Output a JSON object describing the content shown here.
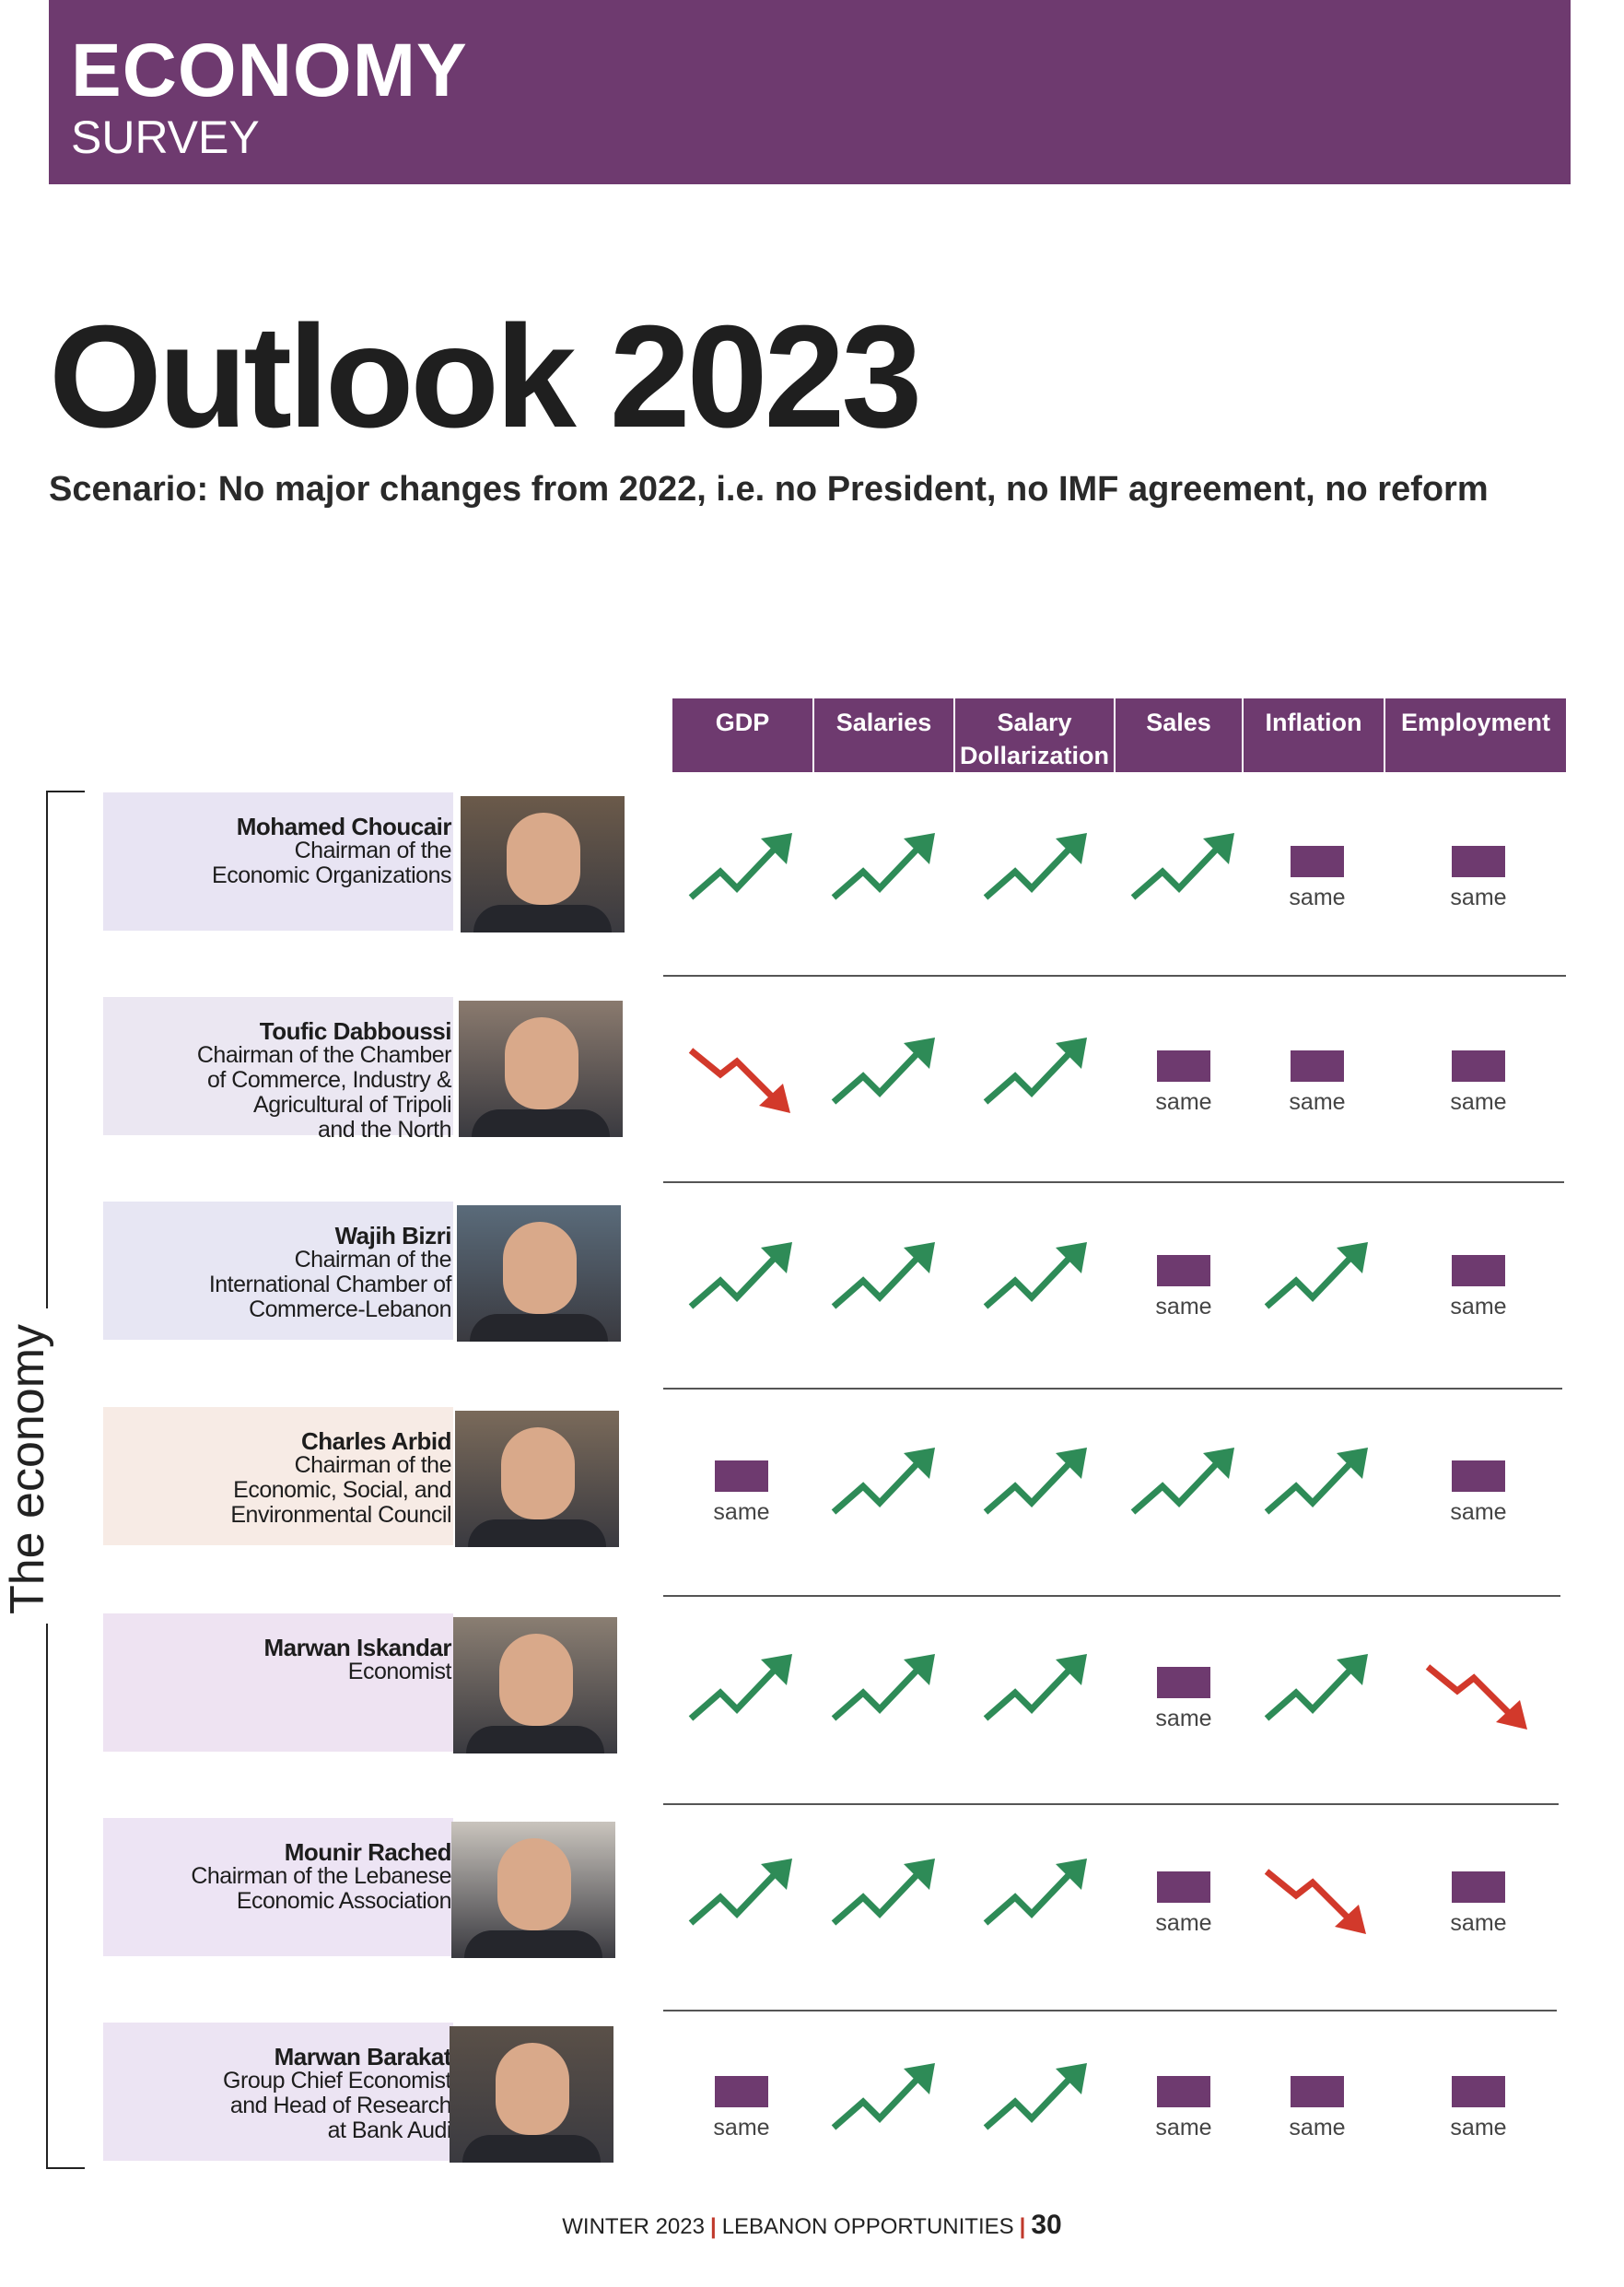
{
  "header": {
    "section": "ECONOMY",
    "subsection": "SURVEY"
  },
  "title": "Outlook 2023",
  "subtitle": "Scenario: No major changes from 2022, i.e. no President, no IMF agreement,  no reform",
  "side_label": "The economy",
  "columns": [
    "GDP",
    "Salaries",
    "Salary Dollarization",
    "Sales",
    "Inflation",
    "Employment"
  ],
  "colors": {
    "accent": "#6e3a6f",
    "up": "#2e8b57",
    "down": "#d2392b"
  },
  "same_label": "same",
  "rows": [
    {
      "name": "Mohamed Choucair",
      "role": "Chairman of the\nEconomic Organizations",
      "outlook": [
        "up",
        "up",
        "up",
        "up",
        "same",
        "same"
      ]
    },
    {
      "name": "Toufic Dabboussi",
      "role": "Chairman of the Chamber\nof Commerce, Industry &\nAgricultural of Tripoli\nand the North",
      "outlook": [
        "down",
        "up",
        "up",
        "same",
        "same",
        "same"
      ]
    },
    {
      "name": "Wajih Bizri",
      "role": "Chairman of the\nInternational Chamber of\nCommerce-Lebanon",
      "outlook": [
        "up",
        "up",
        "up",
        "same",
        "up",
        "same"
      ]
    },
    {
      "name": "Charles Arbid",
      "role": "Chairman of the\nEconomic, Social, and\nEnvironmental Council",
      "outlook": [
        "same",
        "up",
        "up",
        "up",
        "up",
        "same"
      ]
    },
    {
      "name": "Marwan Iskandar",
      "role": "Economist",
      "outlook": [
        "up",
        "up",
        "up",
        "same",
        "up",
        "down"
      ]
    },
    {
      "name": "Mounir Rached",
      "role": "Chairman of the Lebanese\nEconomic Association",
      "outlook": [
        "up",
        "up",
        "up",
        "same",
        "down",
        "same"
      ]
    },
    {
      "name": "Marwan Barakat",
      "role": "Group Chief Economist\nand Head of Research\nat Bank Audi",
      "outlook": [
        "same",
        "up",
        "up",
        "same",
        "same",
        "same"
      ]
    }
  ],
  "footer": {
    "issue": "WINTER 2023",
    "publication": "LEBANON OPPORTUNITIES",
    "page": "30"
  }
}
